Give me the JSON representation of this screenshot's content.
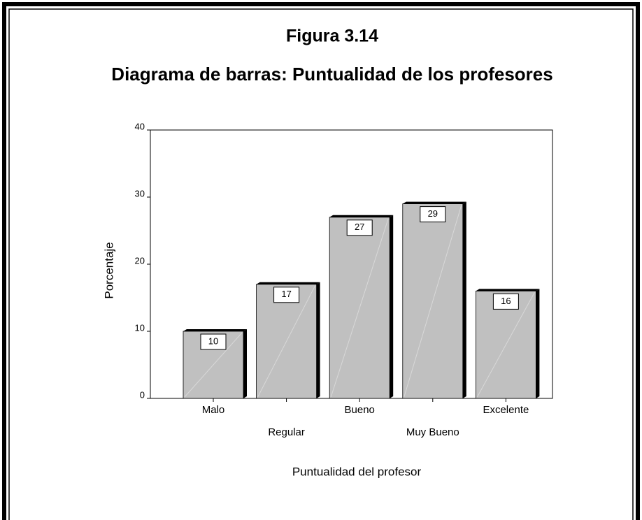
{
  "chart_data": {
    "type": "bar",
    "title": "Figura 3.14",
    "subtitle": "Diagrama de barras: Puntualidad de los profesores",
    "categories": [
      "Malo",
      "Regular",
      "Bueno",
      "Muy Bueno",
      "Excelente"
    ],
    "values": [
      10,
      17,
      27,
      29,
      16
    ],
    "color": "#c0c0c0",
    "ylim": [
      0,
      40
    ],
    "yticks": [
      0,
      10,
      20,
      30,
      40
    ],
    "x_label": "Puntualidad del profesor",
    "y_label": "Porcentaje"
  }
}
